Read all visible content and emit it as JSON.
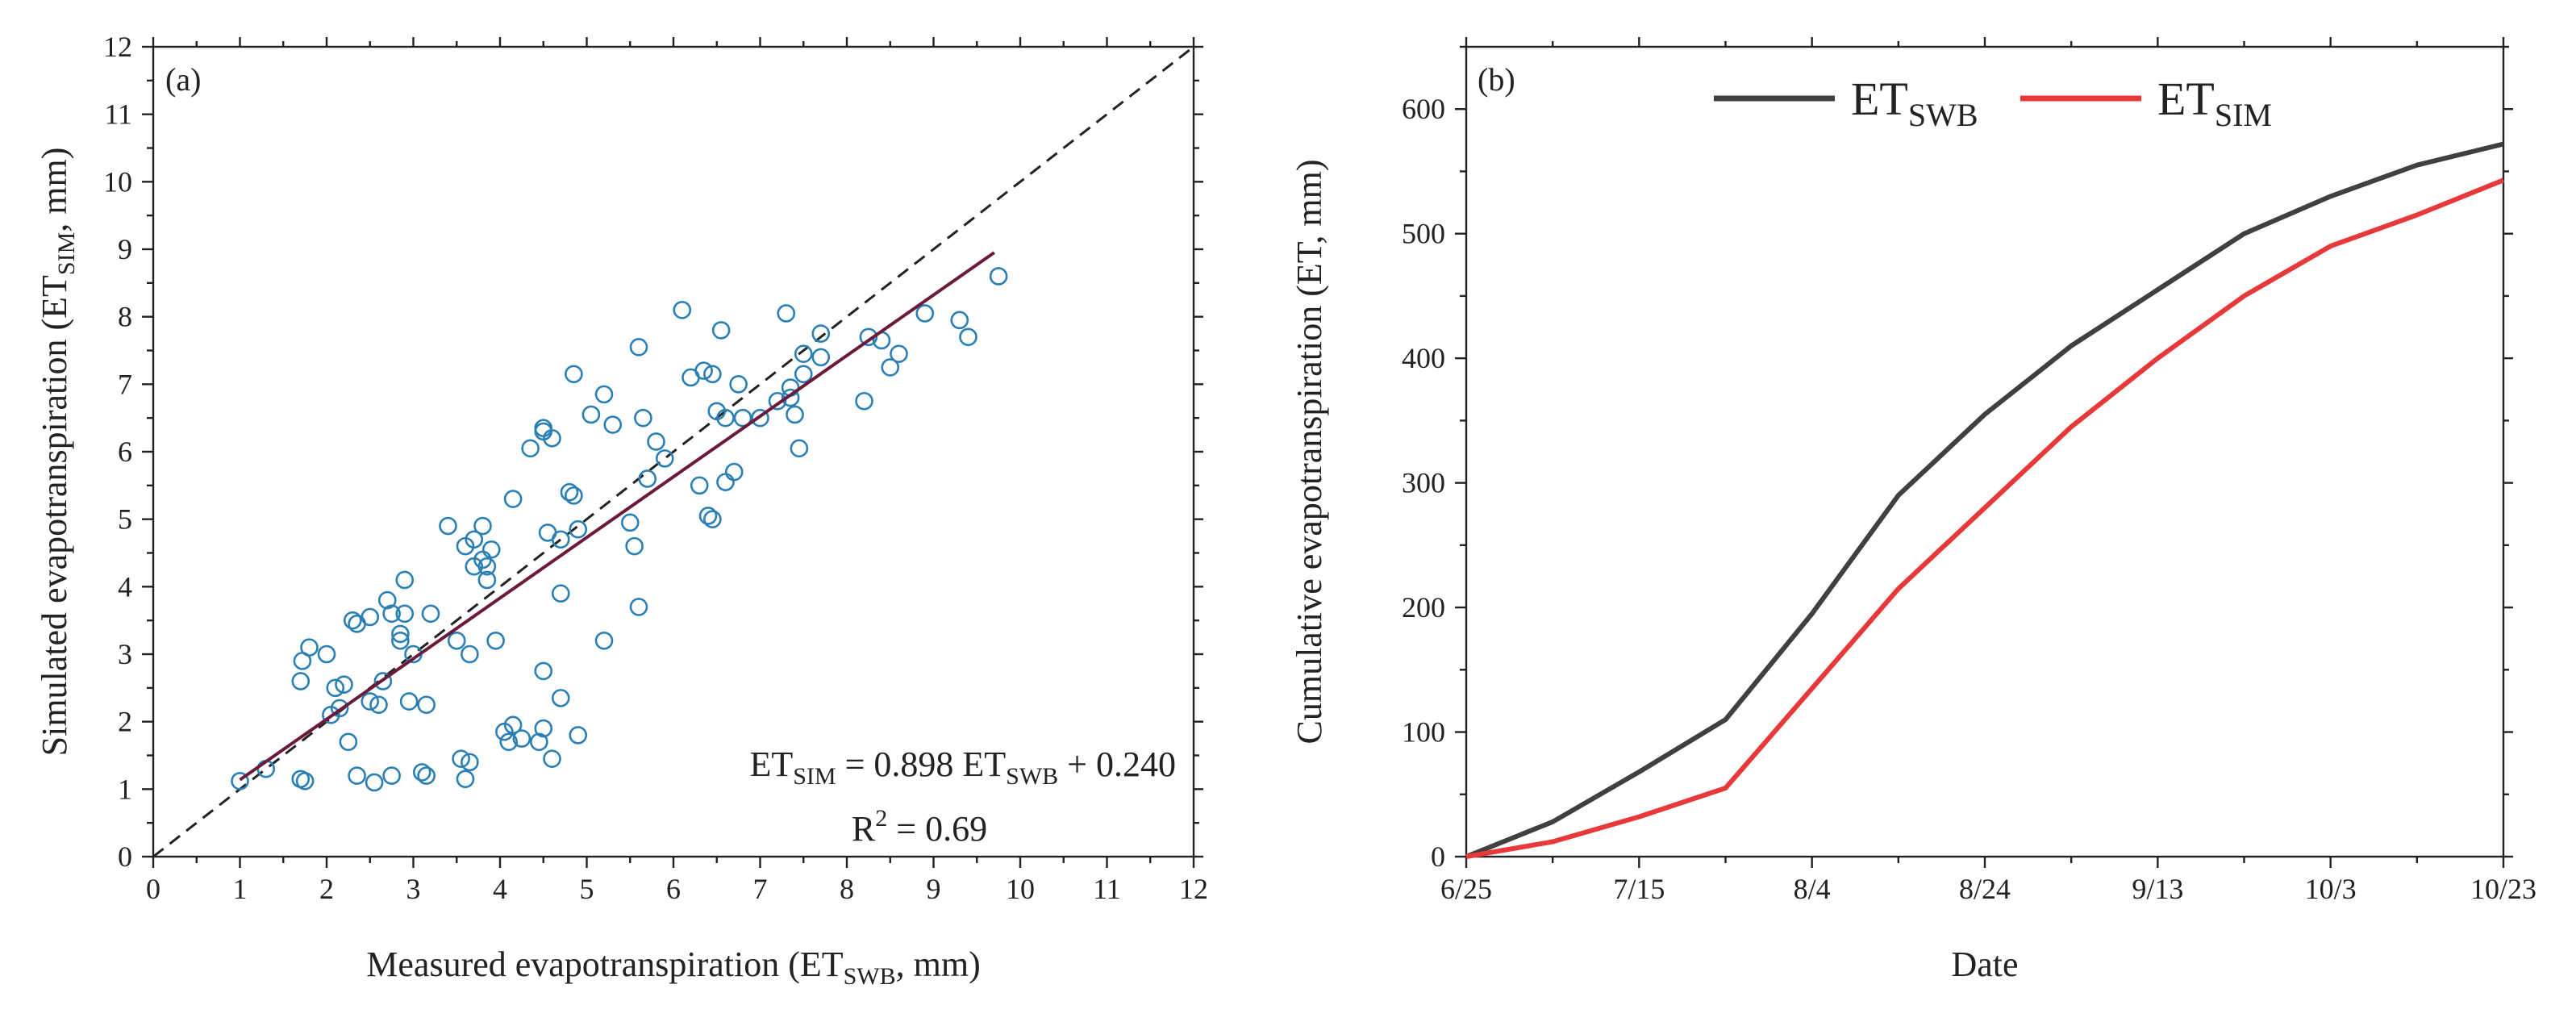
{
  "chart_data": [
    {
      "panel": "(a)",
      "type": "scatter",
      "title": "",
      "xlabel": "Measured evapotranspiration (ET",
      "xlabel_sub": "SWB",
      "xlabel_end": ", mm)",
      "ylabel": "Simulated evapotranspiration (ET",
      "ylabel_sub": "SIM",
      "ylabel_end": ", mm)",
      "xlim": [
        0,
        12
      ],
      "ylim": [
        0,
        12
      ],
      "xticks": [
        "0",
        "1",
        "2",
        "3",
        "4",
        "5",
        "6",
        "7",
        "8",
        "9",
        "10",
        "11",
        "12"
      ],
      "yticks": [
        "0",
        "1",
        "2",
        "3",
        "4",
        "5",
        "6",
        "7",
        "8",
        "9",
        "10",
        "11",
        "12"
      ],
      "grid": false,
      "marker_color": "#2a7fb5",
      "fit_color": "#6b1a3d",
      "identity_line": {
        "style": "dashed",
        "from": [
          0,
          0
        ],
        "to": [
          12,
          12
        ]
      },
      "fit_line": {
        "slope": 0.898,
        "intercept": 0.24,
        "x_range": [
          1.0,
          9.7
        ]
      },
      "equation": {
        "p1": "ET",
        "s1": "SIM",
        "p2": " = 0.898 ET",
        "s2": "SWB",
        "p3": " + 0.240"
      },
      "r2": {
        "p1": "R",
        "sup": "2",
        "p2": " = 0.69"
      },
      "points": [
        [
          1.0,
          1.12
        ],
        [
          1.3,
          1.3
        ],
        [
          1.7,
          1.15
        ],
        [
          1.75,
          1.12
        ],
        [
          1.7,
          2.6
        ],
        [
          1.72,
          2.9
        ],
        [
          1.8,
          3.1
        ],
        [
          2.0,
          3.0
        ],
        [
          2.05,
          2.1
        ],
        [
          2.1,
          2.5
        ],
        [
          2.15,
          2.2
        ],
        [
          2.2,
          2.55
        ],
        [
          2.25,
          1.7
        ],
        [
          2.3,
          3.5
        ],
        [
          2.35,
          1.2
        ],
        [
          2.35,
          3.45
        ],
        [
          2.5,
          3.55
        ],
        [
          2.5,
          2.3
        ],
        [
          2.55,
          1.1
        ],
        [
          2.6,
          2.25
        ],
        [
          2.65,
          2.6
        ],
        [
          2.7,
          3.8
        ],
        [
          2.75,
          3.6
        ],
        [
          2.75,
          1.2
        ],
        [
          2.85,
          3.3
        ],
        [
          2.85,
          3.2
        ],
        [
          2.9,
          3.6
        ],
        [
          2.9,
          4.1
        ],
        [
          2.95,
          2.3
        ],
        [
          3.0,
          3.0
        ],
        [
          3.1,
          1.25
        ],
        [
          3.15,
          2.25
        ],
        [
          3.15,
          1.2
        ],
        [
          3.2,
          3.6
        ],
        [
          3.4,
          4.9
        ],
        [
          3.5,
          3.2
        ],
        [
          3.55,
          1.45
        ],
        [
          3.6,
          1.15
        ],
        [
          3.6,
          4.6
        ],
        [
          3.65,
          1.4
        ],
        [
          3.65,
          3.0
        ],
        [
          3.7,
          4.7
        ],
        [
          3.7,
          4.3
        ],
        [
          3.8,
          4.9
        ],
        [
          3.8,
          4.4
        ],
        [
          3.85,
          4.1
        ],
        [
          3.85,
          4.3
        ],
        [
          3.9,
          4.55
        ],
        [
          3.95,
          3.2
        ],
        [
          4.05,
          1.85
        ],
        [
          4.1,
          1.7
        ],
        [
          4.15,
          1.95
        ],
        [
          4.15,
          5.3
        ],
        [
          4.25,
          1.75
        ],
        [
          4.35,
          6.05
        ],
        [
          4.45,
          1.7
        ],
        [
          4.5,
          1.9
        ],
        [
          4.5,
          2.75
        ],
        [
          4.5,
          6.3
        ],
        [
          4.5,
          6.35
        ],
        [
          4.55,
          4.8
        ],
        [
          4.6,
          1.45
        ],
        [
          4.6,
          6.2
        ],
        [
          4.7,
          2.35
        ],
        [
          4.7,
          3.9
        ],
        [
          4.7,
          4.7
        ],
        [
          4.8,
          5.4
        ],
        [
          4.85,
          5.35
        ],
        [
          4.85,
          7.15
        ],
        [
          4.9,
          1.8
        ],
        [
          4.9,
          4.85
        ],
        [
          5.05,
          6.55
        ],
        [
          5.2,
          6.85
        ],
        [
          5.2,
          3.2
        ],
        [
          5.3,
          6.4
        ],
        [
          5.5,
          4.95
        ],
        [
          5.55,
          4.6
        ],
        [
          5.6,
          7.55
        ],
        [
          5.6,
          3.7
        ],
        [
          5.65,
          6.5
        ],
        [
          5.7,
          5.6
        ],
        [
          5.8,
          6.15
        ],
        [
          5.9,
          5.9
        ],
        [
          6.1,
          8.1
        ],
        [
          6.2,
          7.1
        ],
        [
          6.3,
          5.5
        ],
        [
          6.35,
          7.2
        ],
        [
          6.4,
          5.05
        ],
        [
          6.45,
          5.0
        ],
        [
          6.45,
          7.15
        ],
        [
          6.5,
          6.6
        ],
        [
          6.55,
          7.8
        ],
        [
          6.6,
          5.55
        ],
        [
          6.6,
          6.5
        ],
        [
          6.7,
          5.7
        ],
        [
          6.75,
          7.0
        ],
        [
          6.8,
          6.5
        ],
        [
          7.0,
          6.5
        ],
        [
          7.2,
          6.75
        ],
        [
          7.3,
          8.05
        ],
        [
          7.35,
          6.95
        ],
        [
          7.35,
          6.8
        ],
        [
          7.4,
          6.55
        ],
        [
          7.45,
          6.05
        ],
        [
          7.5,
          7.15
        ],
        [
          7.5,
          7.45
        ],
        [
          7.7,
          7.75
        ],
        [
          7.7,
          7.4
        ],
        [
          8.2,
          6.75
        ],
        [
          8.25,
          7.7
        ],
        [
          8.4,
          7.65
        ],
        [
          8.5,
          7.25
        ],
        [
          8.6,
          7.45
        ],
        [
          8.9,
          8.05
        ],
        [
          9.3,
          7.95
        ],
        [
          9.4,
          7.7
        ],
        [
          9.75,
          8.6
        ]
      ]
    },
    {
      "panel": "(b)",
      "type": "line",
      "title": "",
      "xlabel": "Date",
      "ylabel": "Cumulative evapotranspiration (ET, mm)",
      "xlim": [
        "6/25",
        "10/23"
      ],
      "ylim": [
        0,
        650
      ],
      "x_tick_dates": [
        "6/25",
        "7/15",
        "8/4",
        "8/24",
        "9/13",
        "10/3",
        "10/23"
      ],
      "yticks": [
        "0",
        "100",
        "200",
        "300",
        "400",
        "500",
        "600"
      ],
      "ytick_values": [
        0,
        100,
        200,
        300,
        400,
        500,
        600
      ],
      "grid": false,
      "legend_position": "top",
      "x_dates": [
        "6/25",
        "7/5",
        "7/15",
        "7/25",
        "8/4",
        "8/14",
        "8/24",
        "9/3",
        "9/13",
        "9/23",
        "10/3",
        "10/13",
        "10/23"
      ],
      "series": [
        {
          "name": "ET",
          "name_sub": "SWB",
          "color": "#404040",
          "values": [
            0,
            28,
            68,
            110,
            195,
            290,
            355,
            410,
            455,
            500,
            530,
            555,
            572
          ]
        },
        {
          "name": "ET",
          "name_sub": "SIM",
          "color": "#e8393a",
          "values": [
            0,
            12,
            32,
            55,
            135,
            215,
            280,
            345,
            400,
            450,
            490,
            515,
            543
          ]
        }
      ]
    }
  ]
}
